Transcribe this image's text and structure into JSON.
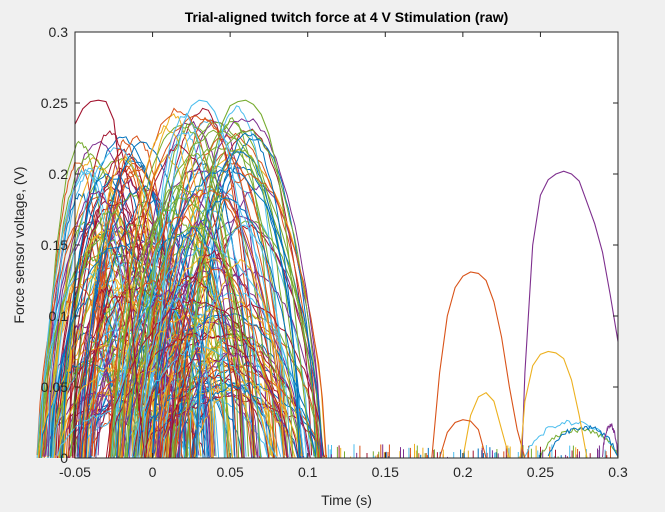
{
  "chart_data": {
    "type": "line",
    "title": "Trial-aligned twitch force at 4 V Stimulation (raw)",
    "xlabel": "Time (s)",
    "ylabel": "Force sensor voltage, (V)",
    "xlim": [
      -0.05,
      0.3
    ],
    "ylim": [
      0,
      0.3
    ],
    "xticks": [
      -0.05,
      0,
      0.05,
      0.1,
      0.15,
      0.2,
      0.25,
      0.3
    ],
    "xtick_labels": [
      "-0.05",
      "0",
      "0.05",
      "0.1",
      "0.15",
      "0.2",
      "0.25",
      "0.3"
    ],
    "yticks": [
      0,
      0.05,
      0.1,
      0.15,
      0.2,
      0.25,
      0.3
    ],
    "ytick_labels": [
      "0",
      "0.05",
      "0.1",
      "0.15",
      "0.2",
      "0.25",
      "0.3"
    ],
    "grid": false,
    "legend": "none",
    "colors": [
      "#0072BD",
      "#D95319",
      "#EDB120",
      "#7E2F8E",
      "#77AC30",
      "#4DBEEE",
      "#A2142F"
    ],
    "series_count_approx": 300,
    "series_representative": [
      {
        "color": "#A2142F",
        "x": [
          -0.05,
          -0.045,
          -0.04,
          -0.035,
          -0.03,
          -0.025,
          -0.02,
          -0.015,
          -0.01,
          -0.005
        ],
        "values": [
          0.235,
          0.246,
          0.251,
          0.252,
          0.251,
          0.238,
          0.19,
          0.12,
          0.05,
          0.0
        ]
      },
      {
        "color": "#4DBEEE",
        "x": [
          0.005,
          0.01,
          0.015,
          0.02,
          0.025,
          0.03,
          0.035,
          0.04,
          0.045,
          0.05,
          0.055,
          0.06,
          0.065,
          0.07,
          0.075,
          0.08
        ],
        "values": [
          0.09,
          0.16,
          0.21,
          0.236,
          0.248,
          0.252,
          0.251,
          0.244,
          0.23,
          0.21,
          0.18,
          0.14,
          0.09,
          0.04,
          0.01,
          0.0
        ]
      },
      {
        "color": "#77AC30",
        "x": [
          0.025,
          0.03,
          0.035,
          0.04,
          0.045,
          0.05,
          0.055,
          0.06,
          0.065,
          0.07,
          0.075,
          0.08,
          0.085,
          0.09,
          0.095,
          0.1,
          0.105
        ],
        "values": [
          0.07,
          0.13,
          0.18,
          0.215,
          0.236,
          0.248,
          0.251,
          0.252,
          0.249,
          0.242,
          0.228,
          0.205,
          0.17,
          0.12,
          0.07,
          0.02,
          0.0
        ]
      },
      {
        "color": "#7E2F8E",
        "x": [
          0.238,
          0.24,
          0.245,
          0.25,
          0.255,
          0.26,
          0.265,
          0.27,
          0.275,
          0.28,
          0.285,
          0.29,
          0.295,
          0.3
        ],
        "values": [
          0.0,
          0.06,
          0.15,
          0.185,
          0.196,
          0.2,
          0.202,
          0.2,
          0.195,
          0.18,
          0.165,
          0.145,
          0.115,
          0.082
        ]
      },
      {
        "color": "#D95319",
        "x": [
          0.18,
          0.185,
          0.19,
          0.195,
          0.2,
          0.205,
          0.21,
          0.215,
          0.22,
          0.225,
          0.23,
          0.235,
          0.24
        ],
        "values": [
          0.0,
          0.06,
          0.1,
          0.12,
          0.128,
          0.131,
          0.13,
          0.125,
          0.11,
          0.085,
          0.05,
          0.02,
          0.0
        ]
      },
      {
        "color": "#EDB120",
        "x": [
          0.237,
          0.24,
          0.245,
          0.25,
          0.255,
          0.26,
          0.265,
          0.27,
          0.275,
          0.28
        ],
        "values": [
          0.0,
          0.04,
          0.065,
          0.073,
          0.075,
          0.074,
          0.07,
          0.055,
          0.03,
          0.0
        ]
      },
      {
        "color": "#EDB120",
        "x": [
          0.2,
          0.205,
          0.21,
          0.215,
          0.22,
          0.225,
          0.23
        ],
        "values": [
          0.0,
          0.03,
          0.043,
          0.046,
          0.04,
          0.02,
          0.0
        ]
      },
      {
        "color": "#D95319",
        "x": [
          0.185,
          0.19,
          0.195,
          0.2,
          0.205,
          0.21,
          0.215
        ],
        "values": [
          0.0,
          0.018,
          0.025,
          0.027,
          0.026,
          0.02,
          0.0
        ]
      }
    ]
  }
}
